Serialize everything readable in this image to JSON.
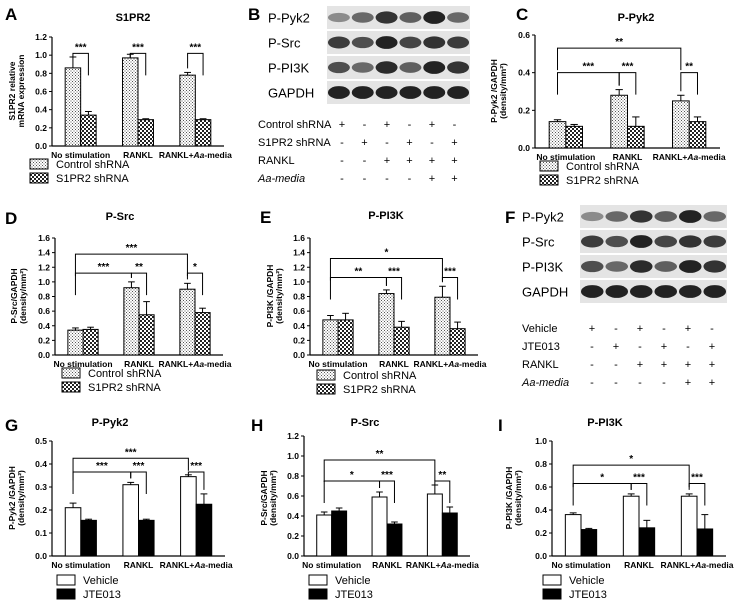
{
  "panels": [
    {
      "id": "A",
      "type": "bar",
      "title": "S1PR2",
      "ylabel": [
        "S1PR2 relative",
        "mRNA expression"
      ],
      "ylim": [
        0,
        1.2
      ],
      "yticks": [
        "0.0",
        "0.2",
        "0.4",
        "0.6",
        "0.8",
        "1.0",
        "1.2"
      ],
      "categories": [
        "No stimulation",
        "RANKL",
        "RANKL+Aa-media"
      ],
      "series": [
        {
          "name": "Control shRNA",
          "pattern": "dots",
          "values": [
            0.86,
            0.97,
            0.78
          ],
          "errors": [
            0.12,
            0.04,
            0.03
          ]
        },
        {
          "name": "S1PR2 shRNA",
          "pattern": "checker",
          "values": [
            0.34,
            0.29,
            0.29
          ],
          "errors": [
            0.04,
            0.01,
            0.01
          ]
        }
      ],
      "comparisons": [
        {
          "label": "***",
          "a": [
            0,
            0
          ],
          "b": [
            0,
            1
          ],
          "y": 1.02
        },
        {
          "label": "***",
          "a": [
            1,
            0
          ],
          "b": [
            1,
            1
          ],
          "y": 1.02
        },
        {
          "label": "***",
          "a": [
            2,
            0
          ],
          "b": [
            2,
            1
          ],
          "y": 1.02
        }
      ]
    },
    {
      "id": "C",
      "type": "bar",
      "title": "P-Pyk2",
      "ylabel": [
        "P-Pyk2 /GAPDH",
        "(density/mm²)"
      ],
      "ylim": [
        0,
        0.6
      ],
      "yticks": [
        "0.0",
        "0.2",
        "0.4",
        "0.6"
      ],
      "categories": [
        "No stimulation",
        "RANKL",
        "RANKL+Aa-media"
      ],
      "series": [
        {
          "name": "Control shRNA",
          "pattern": "dots",
          "values": [
            0.14,
            0.28,
            0.25
          ],
          "errors": [
            0.01,
            0.03,
            0.03
          ]
        },
        {
          "name": "S1PR2 shRNA",
          "pattern": "checker",
          "values": [
            0.115,
            0.115,
            0.14
          ],
          "errors": [
            0.01,
            0.05,
            0.025
          ]
        }
      ],
      "comparisons": [
        {
          "label": "**",
          "a": [
            0,
            0
          ],
          "b": [
            2,
            0
          ],
          "y": 0.53
        },
        {
          "label": "***",
          "a": [
            0,
            0
          ],
          "b": [
            1,
            0
          ],
          "y": 0.4
        },
        {
          "label": "***",
          "a": [
            1,
            0
          ],
          "b": [
            1,
            1
          ],
          "y": 0.4
        },
        {
          "label": "**",
          "a": [
            2,
            0
          ],
          "b": [
            2,
            1
          ],
          "y": 0.4
        }
      ]
    },
    {
      "id": "D",
      "type": "bar",
      "title": "P-Src",
      "ylabel": [
        "P-Src/GAPDH",
        "(density/mm²)"
      ],
      "ylim": [
        0,
        1.6
      ],
      "yticks": [
        "0.0",
        "0.2",
        "0.4",
        "0.6",
        "0.8",
        "1.0",
        "1.2",
        "1.4",
        "1.6"
      ],
      "categories": [
        "No stimulation",
        "RANKL",
        "RANKL+Aa-media"
      ],
      "series": [
        {
          "name": "Control shRNA",
          "pattern": "dots",
          "values": [
            0.34,
            0.92,
            0.9
          ],
          "errors": [
            0.03,
            0.08,
            0.08
          ]
        },
        {
          "name": "S1PR2 shRNA",
          "pattern": "checker",
          "values": [
            0.35,
            0.55,
            0.58
          ],
          "errors": [
            0.03,
            0.18,
            0.06
          ]
        }
      ],
      "comparisons": [
        {
          "label": "***",
          "a": [
            0,
            0
          ],
          "b": [
            2,
            0
          ],
          "y": 1.38
        },
        {
          "label": "***",
          "a": [
            0,
            0
          ],
          "b": [
            1,
            0
          ],
          "y": 1.12
        },
        {
          "label": "**",
          "a": [
            1,
            0
          ],
          "b": [
            1,
            1
          ],
          "y": 1.12
        },
        {
          "label": "*",
          "a": [
            2,
            0
          ],
          "b": [
            2,
            1
          ],
          "y": 1.12
        }
      ]
    },
    {
      "id": "E",
      "type": "bar",
      "title": "P-PI3K",
      "ylabel": [
        "P-PI3K /GAPDH",
        "(density/mm²)"
      ],
      "ylim": [
        0,
        1.6
      ],
      "yticks": [
        "0.0",
        "0.2",
        "0.4",
        "0.6",
        "0.8",
        "1.0",
        "1.2",
        "1.4",
        "1.6"
      ],
      "categories": [
        "No stimulation",
        "RANKL",
        "RANKL+Aa-media"
      ],
      "series": [
        {
          "name": "Control shRNA",
          "pattern": "dots",
          "values": [
            0.48,
            0.84,
            0.79
          ],
          "errors": [
            0.06,
            0.05,
            0.15
          ]
        },
        {
          "name": "S1PR2 shRNA",
          "pattern": "checker",
          "values": [
            0.48,
            0.38,
            0.36
          ],
          "errors": [
            0.09,
            0.08,
            0.09
          ]
        }
      ],
      "comparisons": [
        {
          "label": "*",
          "a": [
            0,
            0
          ],
          "b": [
            2,
            0
          ],
          "y": 1.32
        },
        {
          "label": "**",
          "a": [
            0,
            0
          ],
          "b": [
            1,
            0
          ],
          "y": 1.06
        },
        {
          "label": "***",
          "a": [
            1,
            0
          ],
          "b": [
            1,
            1
          ],
          "y": 1.06
        },
        {
          "label": "***",
          "a": [
            2,
            0
          ],
          "b": [
            2,
            1
          ],
          "y": 1.06
        }
      ]
    },
    {
      "id": "G",
      "type": "bar",
      "title": "P-Pyk2",
      "ylabel": [
        "P-Pyk2 /GAPDH",
        "(density/mm²)"
      ],
      "ylim": [
        0,
        0.5
      ],
      "yticks": [
        "0.0",
        "0.1",
        "0.2",
        "0.3",
        "0.4",
        "0.5"
      ],
      "categories": [
        "No stimulation",
        "RANKL",
        "RANKL+Aa-media"
      ],
      "series": [
        {
          "name": "Vehicle",
          "pattern": "white",
          "values": [
            0.21,
            0.31,
            0.345
          ],
          "errors": [
            0.02,
            0.01,
            0.008
          ]
        },
        {
          "name": "JTE013",
          "pattern": "black",
          "values": [
            0.155,
            0.155,
            0.225
          ],
          "errors": [
            0.005,
            0.005,
            0.045
          ]
        }
      ],
      "comparisons": [
        {
          "label": "***",
          "a": [
            0,
            0
          ],
          "b": [
            2,
            0
          ],
          "y": 0.425
        },
        {
          "label": "***",
          "a": [
            0,
            0
          ],
          "b": [
            1,
            0
          ],
          "y": 0.365
        },
        {
          "label": "***",
          "a": [
            1,
            0
          ],
          "b": [
            1,
            1
          ],
          "y": 0.365
        },
        {
          "label": "***",
          "a": [
            2,
            0
          ],
          "b": [
            2,
            1
          ],
          "y": 0.365
        }
      ]
    },
    {
      "id": "H",
      "type": "bar",
      "title": "P-Src",
      "ylabel": [
        "P-Src/GAPDH",
        "(density/mm²)"
      ],
      "ylim": [
        0,
        1.2
      ],
      "yticks": [
        "0.0",
        "0.2",
        "0.4",
        "0.6",
        "0.8",
        "1.0",
        "1.2"
      ],
      "categories": [
        "No stimulation",
        "RANKL",
        "RANKL+Aa-media"
      ],
      "series": [
        {
          "name": "Vehicle",
          "pattern": "white",
          "values": [
            0.41,
            0.59,
            0.62
          ],
          "errors": [
            0.03,
            0.05,
            0.09
          ]
        },
        {
          "name": "JTE013",
          "pattern": "black",
          "values": [
            0.45,
            0.32,
            0.43
          ],
          "errors": [
            0.03,
            0.02,
            0.06
          ]
        }
      ],
      "comparisons": [
        {
          "label": "**",
          "a": [
            0,
            0
          ],
          "b": [
            2,
            0
          ],
          "y": 0.96
        },
        {
          "label": "*",
          "a": [
            0,
            0
          ],
          "b": [
            1,
            0
          ],
          "y": 0.75
        },
        {
          "label": "***",
          "a": [
            1,
            0
          ],
          "b": [
            1,
            1
          ],
          "y": 0.75
        },
        {
          "label": "**",
          "a": [
            2,
            0
          ],
          "b": [
            2,
            1
          ],
          "y": 0.75
        }
      ]
    },
    {
      "id": "I",
      "type": "bar",
      "title": "P-PI3K",
      "ylabel": [
        "P-PI3K /GAPDH",
        "(density/mm²)"
      ],
      "ylim": [
        0,
        1.0
      ],
      "yticks": [
        "0.0",
        "0.2",
        "0.4",
        "0.6",
        "0.8",
        "1.0"
      ],
      "categories": [
        "No stimulation",
        "RANKL",
        "RANKL+Aa-media"
      ],
      "series": [
        {
          "name": "Vehicle",
          "pattern": "white",
          "values": [
            0.36,
            0.52,
            0.52
          ],
          "errors": [
            0.015,
            0.02,
            0.02
          ]
        },
        {
          "name": "JTE013",
          "pattern": "black",
          "values": [
            0.23,
            0.245,
            0.235
          ],
          "errors": [
            0.01,
            0.065,
            0.125
          ]
        }
      ],
      "comparisons": [
        {
          "label": "*",
          "a": [
            0,
            0
          ],
          "b": [
            2,
            0
          ],
          "y": 0.79
        },
        {
          "label": "*",
          "a": [
            0,
            0
          ],
          "b": [
            1,
            0
          ],
          "y": 0.63
        },
        {
          "label": "***",
          "a": [
            1,
            0
          ],
          "b": [
            1,
            1
          ],
          "y": 0.63
        },
        {
          "label": "***",
          "a": [
            2,
            0
          ],
          "b": [
            2,
            1
          ],
          "y": 0.63
        }
      ]
    }
  ],
  "blots": [
    {
      "id": "B",
      "bands": [
        "P-Pyk2",
        "P-Src",
        "P-PI3K",
        "GAPDH"
      ],
      "rows": [
        {
          "label": "Control shRNA",
          "values": [
            "+",
            "-",
            "+",
            "-",
            "+",
            "-"
          ]
        },
        {
          "label": "S1PR2 shRNA",
          "values": [
            "-",
            "+",
            "-",
            "+",
            "-",
            "+"
          ]
        },
        {
          "label": "RANKL",
          "values": [
            "-",
            "-",
            "+",
            "+",
            "+",
            "+"
          ]
        },
        {
          "label": "Aa-media",
          "italic": true,
          "values": [
            "-",
            "-",
            "-",
            "-",
            "+",
            "+"
          ]
        }
      ]
    },
    {
      "id": "F",
      "bands": [
        "P-Pyk2",
        "P-Src",
        "P-PI3K",
        "GAPDH"
      ],
      "rows": [
        {
          "label": "Vehicle",
          "values": [
            "+",
            "-",
            "+",
            "-",
            "+",
            "-"
          ]
        },
        {
          "label": "JTE013",
          "values": [
            "-",
            "+",
            "-",
            "+",
            "-",
            "+"
          ]
        },
        {
          "label": "RANKL",
          "values": [
            "-",
            "-",
            "+",
            "+",
            "+",
            "+"
          ]
        },
        {
          "label": "Aa-media",
          "italic": true,
          "values": [
            "-",
            "-",
            "-",
            "-",
            "+",
            "+"
          ]
        }
      ]
    }
  ],
  "colors": {
    "axis": "#000000",
    "bar_fill": "#ffffff",
    "black_bar": "#000000",
    "band": "#1e1e1e"
  }
}
